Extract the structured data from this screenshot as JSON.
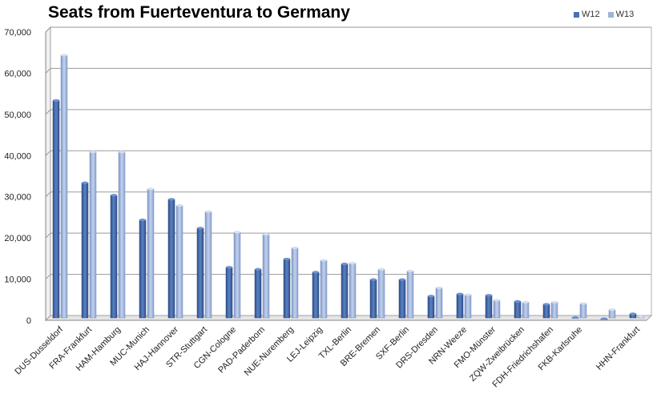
{
  "chart_data": {
    "type": "bar",
    "title": "Seats from Fuerteventura to Germany",
    "xlabel": "",
    "ylabel": "",
    "ylim": [
      0,
      70000
    ],
    "yticks": [
      "0",
      "10,000",
      "20,000",
      "30,000",
      "40,000",
      "50,000",
      "60,000",
      "70,000"
    ],
    "grid": true,
    "legend_position": "top-right",
    "categories": [
      "DUS-Dusseldorf",
      "FRA-Frankfurt",
      "HAM-Hamburg",
      "MUC-Munich",
      "HAJ-Hannover",
      "STR-Stuttgart",
      "CGN-Cologne",
      "PAD-Paderborn",
      "NUE-Nuremberg",
      "LEJ-Leipzig",
      "TXL-Berlin",
      "BRE-Bremen",
      "SXF-Berlin",
      "DRS-Dresden",
      "NRN-Weeze",
      "FMO-Münster",
      "ZQW-Zweibrücken",
      "FDH-Friedrichshafen",
      "FKB-Karlsruhe",
      "",
      "HHN-Frankfurt"
    ],
    "series": [
      {
        "name": "W12",
        "color": "#4a71b4",
        "values": [
          53000,
          33000,
          30000,
          24000,
          29000,
          22000,
          12500,
          12000,
          14500,
          11300,
          13300,
          9500,
          9500,
          5500,
          6000,
          5700,
          4200,
          3500,
          300,
          0,
          1200
        ]
      },
      {
        "name": "W13",
        "color": "#9db3dc",
        "values": [
          64000,
          40500,
          40500,
          31500,
          27500,
          26000,
          21000,
          20500,
          17200,
          14200,
          13500,
          12000,
          11600,
          7500,
          5800,
          4500,
          4000,
          4000,
          3700,
          2200,
          500
        ]
      }
    ]
  }
}
